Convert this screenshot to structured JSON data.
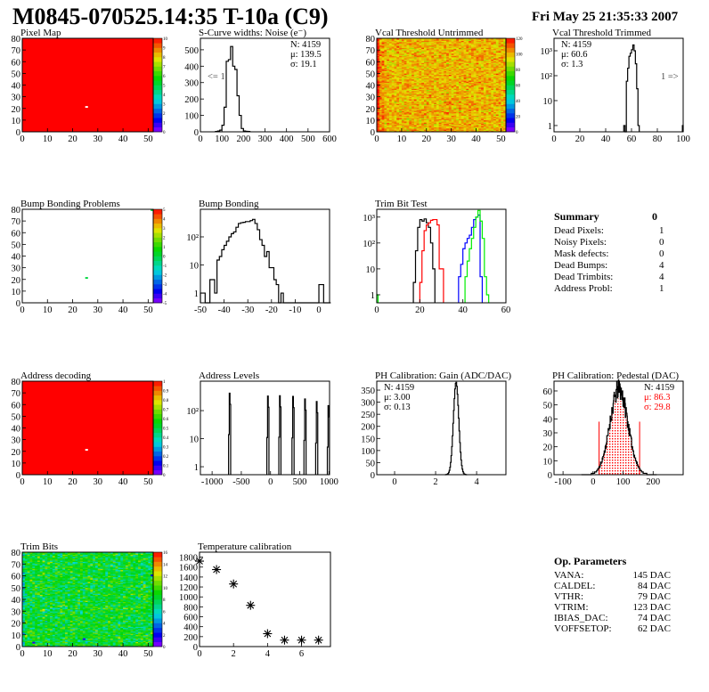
{
  "header": {
    "title": "M0845-070525.14:35 T-10a (C9)",
    "date": "Fri May 25 21:35:33 2007"
  },
  "summary": {
    "title": "Summary",
    "total": "0",
    "rows": [
      {
        "label": "Dead Pixels:",
        "value": "1"
      },
      {
        "label": "Noisy Pixels:",
        "value": "0"
      },
      {
        "label": "Mask defects:",
        "value": "0"
      },
      {
        "label": "Dead Bumps:",
        "value": "4"
      },
      {
        "label": "Dead Trimbits:",
        "value": "4"
      },
      {
        "label": "Address Probl:",
        "value": "1"
      }
    ]
  },
  "op_params": {
    "title": "Op. Parameters",
    "rows": [
      {
        "label": "VANA:",
        "value": "145 DAC"
      },
      {
        "label": "CALDEL:",
        "value": "84 DAC"
      },
      {
        "label": "VTHR:",
        "value": "79 DAC"
      },
      {
        "label": "VTRIM:",
        "value": "123 DAC"
      },
      {
        "label": "IBIAS_DAC:",
        "value": "74 DAC"
      },
      {
        "label": "VOFFSETOP:",
        "value": "62 DAC"
      }
    ]
  },
  "chart_data": [
    {
      "id": "pixel_map",
      "type": "heatmap",
      "title": "Pixel Map",
      "xlim": [
        0,
        52
      ],
      "ylim": [
        0,
        80
      ],
      "xticks": [
        0,
        10,
        20,
        30,
        40,
        50
      ],
      "xtick_labels": [
        "0",
        "10",
        "20",
        "30",
        "40",
        "50"
      ],
      "yticks": [
        0,
        10,
        20,
        30,
        40,
        50,
        60,
        70,
        80
      ],
      "ytick_labels": [
        "0",
        "10",
        "20",
        "30",
        "40",
        "50",
        "60",
        "70",
        "80"
      ],
      "zlim": [
        0,
        10
      ],
      "zticks": [
        "0",
        "1",
        "2",
        "3",
        "4",
        "5",
        "6",
        "7",
        "8",
        "9",
        "10"
      ],
      "fill": {
        "mode": "uniform",
        "value": 10
      },
      "cells": [
        {
          "x": 25,
          "y": 21,
          "v": null
        }
      ]
    },
    {
      "id": "scurve_noise",
      "type": "bar",
      "title": "S-Curve widths: Noise (e⁻)",
      "log": false,
      "xlim": [
        0,
        600
      ],
      "ylim": [
        0,
        570
      ],
      "xticks": [
        0,
        100,
        200,
        300,
        400,
        500,
        600
      ],
      "xtick_labels": [
        "0",
        "100",
        "200",
        "300",
        "400",
        "500",
        "600"
      ],
      "yticks": [
        0,
        100,
        200,
        300,
        400,
        500
      ],
      "ytick_labels": [
        "0",
        "100",
        "200",
        "300",
        "400",
        "500"
      ],
      "series": [
        {
          "name": "noise",
          "color": "#000000",
          "lo": 70,
          "w": 10,
          "values": [
            2,
            5,
            10,
            40,
            150,
            430,
            440,
            520,
            400,
            380,
            220,
            100,
            20,
            5,
            3,
            2
          ]
        }
      ],
      "stats": {
        "pos": "top-right",
        "lines": [
          "N: 4159",
          "μ: 139.5",
          "σ: 19.1"
        ]
      },
      "annotation": {
        "text": "<= 1",
        "pos": "left"
      }
    },
    {
      "id": "vcal_untrimmed",
      "type": "heatmap",
      "title": "Vcal Threshold Untrimmed",
      "xlim": [
        0,
        52
      ],
      "ylim": [
        0,
        80
      ],
      "xticks": [
        0,
        10,
        20,
        30,
        40,
        50
      ],
      "xtick_labels": [
        "0",
        "10",
        "20",
        "30",
        "40",
        "50"
      ],
      "yticks": [
        0,
        10,
        20,
        30,
        40,
        50,
        60,
        70,
        80
      ],
      "ytick_labels": [
        "0",
        "10",
        "20",
        "30",
        "40",
        "50",
        "60",
        "70",
        "80"
      ],
      "zlim": [
        0,
        120
      ],
      "zticks": [
        "0",
        "20",
        "40",
        "60",
        "80",
        "100",
        "120"
      ],
      "fill": {
        "mode": "random",
        "mean": 100,
        "sigma": 6,
        "seed": 7,
        "edge_boost": 12
      },
      "cells": []
    },
    {
      "id": "vcal_trimmed",
      "type": "bar",
      "title": "Vcal Threshold Trimmed",
      "log": true,
      "xlim": [
        0,
        100
      ],
      "ylim": [
        0.56,
        3160
      ],
      "xticks": [
        0,
        20,
        40,
        60,
        80,
        100
      ],
      "xtick_labels": [
        "0",
        "20",
        "40",
        "60",
        "80",
        "100"
      ],
      "yticks": [
        1,
        10,
        100,
        1000
      ],
      "ytick_labels": [
        "1",
        "10",
        "10²",
        "10³"
      ],
      "series": [
        {
          "name": "trimmed",
          "color": "#000000",
          "lo": 54,
          "w": 1,
          "values": [
            1,
            0,
            60,
            200,
            600,
            800,
            1100,
            1700,
            1000,
            300,
            30,
            1
          ]
        },
        {
          "name": "overflow",
          "color": "#000000",
          "lo": 99.4,
          "w": 0.6,
          "values": [
            1
          ]
        }
      ],
      "stats": {
        "pos": "top-left",
        "lines": [
          "N: 4159",
          "μ: 60.6",
          "σ:  1.3"
        ]
      },
      "annotation": {
        "text": "1 =>",
        "pos": "right"
      }
    },
    {
      "id": "bump_map",
      "type": "heatmap",
      "title": "Bump Bonding Problems",
      "xlim": [
        0,
        52
      ],
      "ylim": [
        0,
        80
      ],
      "xticks": [
        0,
        10,
        20,
        30,
        40,
        50
      ],
      "xtick_labels": [
        "0",
        "10",
        "20",
        "30",
        "40",
        "50"
      ],
      "yticks": [
        0,
        10,
        20,
        30,
        40,
        50,
        60,
        70,
        80
      ],
      "ytick_labels": [
        "0",
        "10",
        "20",
        "30",
        "40",
        "50",
        "60",
        "70",
        "80"
      ],
      "zlim": [
        -5,
        5
      ],
      "zticks": [
        "-5",
        "-4",
        "-3",
        "-2",
        "-1",
        "0",
        "1",
        "2",
        "3",
        "4",
        "5"
      ],
      "fill": {
        "mode": "empty"
      },
      "cells": [
        {
          "x": 25,
          "y": 21,
          "v": 0
        },
        {
          "x": 51,
          "y": 79,
          "v": 0
        }
      ]
    },
    {
      "id": "bump_bonding",
      "type": "bar",
      "title": "Bump Bonding",
      "log": true,
      "xlim": [
        -50,
        4.5
      ],
      "ylim": [
        0.45,
        960
      ],
      "xticks": [
        -50,
        -40,
        -30,
        -20,
        -10,
        0
      ],
      "xtick_labels": [
        "-50",
        "-40",
        "-30",
        "-20",
        "-10",
        "0"
      ],
      "yticks": [
        1,
        10,
        100
      ],
      "ytick_labels": [
        "1",
        "10",
        "10²"
      ],
      "series": [
        {
          "name": "bump",
          "color": "#000000",
          "lo": -50,
          "w": 1,
          "values": [
            1,
            1,
            0,
            0,
            3,
            3,
            1,
            15,
            20,
            35,
            50,
            70,
            100,
            130,
            150,
            220,
            300,
            320,
            330,
            350,
            350,
            380,
            420,
            300,
            180,
            80,
            50,
            20,
            30,
            8,
            8,
            3,
            2,
            0,
            1,
            0,
            0,
            0,
            0,
            0,
            0,
            0,
            0,
            0,
            0,
            0,
            0,
            0,
            0,
            0,
            2,
            2,
            0,
            0,
            0
          ]
        }
      ]
    },
    {
      "id": "trim_bit_test",
      "type": "bar",
      "title": "Trim Bit Test",
      "log": true,
      "xlim": [
        0,
        60
      ],
      "ylim": [
        0.49,
        2000
      ],
      "xticks": [
        0,
        20,
        40,
        60
      ],
      "xtick_labels": [
        "0",
        "20",
        "40",
        "60"
      ],
      "yticks": [
        1,
        10,
        100,
        1000
      ],
      "ytick_labels": [
        "1",
        "10",
        "10²",
        "10³"
      ],
      "series": [
        {
          "name": "trim bit 1",
          "color": "#000000",
          "lo": 17,
          "w": 1,
          "values": [
            3,
            50,
            400,
            800,
            700,
            850,
            600,
            400,
            100,
            10
          ]
        },
        {
          "name": "trim bit 2",
          "color": "#ff0000",
          "lo": 20,
          "w": 1,
          "values": [
            3,
            50,
            300,
            500,
            600,
            750,
            800,
            800,
            500,
            10,
            10
          ]
        },
        {
          "name": "trim bit 3",
          "color": "#0000ff",
          "lo": 38,
          "w": 1,
          "values": [
            5,
            15,
            60,
            100,
            150,
            200,
            400,
            800,
            1000,
            1200,
            5
          ]
        },
        {
          "name": "trim bit 4",
          "color": "#00ee00",
          "lo": 41,
          "w": 1,
          "values": [
            5,
            20,
            60,
            150,
            400,
            1000,
            1800,
            700,
            150,
            5,
            1
          ]
        },
        {
          "name": "trim bit 4 underflow",
          "color": "#00ee00",
          "lo": 0,
          "w": 0.6,
          "values": [
            1
          ]
        }
      ]
    },
    {
      "id": "address_map",
      "type": "heatmap",
      "title": "Address decoding",
      "xlim": [
        0,
        52
      ],
      "ylim": [
        0,
        80
      ],
      "xticks": [
        0,
        10,
        20,
        30,
        40,
        50
      ],
      "xtick_labels": [
        "0",
        "10",
        "20",
        "30",
        "40",
        "50"
      ],
      "yticks": [
        0,
        10,
        20,
        30,
        40,
        50,
        60,
        70,
        80
      ],
      "ytick_labels": [
        "0",
        "10",
        "20",
        "30",
        "40",
        "50",
        "60",
        "70",
        "80"
      ],
      "zlim": [
        0,
        1
      ],
      "zticks": [
        "0",
        "0.1",
        "0.2",
        "0.3",
        "0.4",
        "0.5",
        "0.6",
        "0.7",
        "0.8",
        "0.9",
        "1"
      ],
      "fill": {
        "mode": "uniform",
        "value": 1
      },
      "cells": [
        {
          "x": 25,
          "y": 21,
          "v": null
        }
      ]
    },
    {
      "id": "address_levels",
      "type": "bar",
      "title": "Address Levels",
      "log": true,
      "xlim": [
        -1200,
        1010
      ],
      "ylim": [
        0.52,
        1120
      ],
      "xticks": [
        -1000,
        -500,
        0,
        500,
        1000
      ],
      "xtick_labels": [
        "-1000",
        "-500",
        "0",
        "500",
        "1000"
      ],
      "yticks": [
        1,
        10,
        100
      ],
      "ytick_labels": [
        "1",
        "10",
        "10²"
      ],
      "spikes": [
        {
          "x": -700,
          "peak": 420
        },
        {
          "x": -45,
          "peak": 330
        },
        {
          "x": 160,
          "peak": 340
        },
        {
          "x": 385,
          "peak": 320
        },
        {
          "x": 590,
          "peak": 260
        },
        {
          "x": 790,
          "peak": 210
        },
        {
          "x": 990,
          "peak": 150
        }
      ]
    },
    {
      "id": "ph_gain",
      "type": "bar",
      "title": "PH Calibration: Gain (ADC/DAC)",
      "log": false,
      "xlim": [
        -0.87,
        5.43
      ],
      "ylim": [
        0,
        387
      ],
      "xticks": [
        0,
        2,
        4
      ],
      "xtick_labels": [
        "0",
        "2",
        "4"
      ],
      "yticks": [
        0,
        50,
        100,
        150,
        200,
        250,
        300,
        350
      ],
      "ytick_labels": [
        "0",
        "50",
        "100",
        "150",
        "200",
        "250",
        "300",
        "350"
      ],
      "gaussian": {
        "n": 4159,
        "mean": 3.0,
        "sigma": 0.13,
        "w": 0.03,
        "color": "#000000"
      },
      "stats": {
        "pos": "top-left",
        "lines": [
          "N: 4159",
          "μ: 3.00",
          "σ: 0.13"
        ]
      }
    },
    {
      "id": "ph_pedestal",
      "type": "bar",
      "title": "PH Calibration: Pedestal (DAC)",
      "log": false,
      "xlim": [
        -130,
        300
      ],
      "ylim": [
        0,
        67
      ],
      "xticks": [
        -100,
        0,
        100,
        200
      ],
      "xtick_labels": [
        "-100",
        "0",
        "100",
        "200"
      ],
      "yticks": [
        0,
        10,
        20,
        30,
        40,
        50,
        60
      ],
      "ytick_labels": [
        "0",
        "10",
        "20",
        "30",
        "40",
        "50",
        "60"
      ],
      "gaussian": {
        "n": 4159,
        "mean": 86.3,
        "sigma": 29.8,
        "w": 1.1,
        "color": "#000000",
        "noise": 0.12
      },
      "fit_range": [
        20,
        155
      ],
      "fit_color": "#ff0000",
      "stats": {
        "pos": "top-right",
        "lines": [
          "N: 4159",
          "μ: 86.3",
          "σ: 29.8"
        ],
        "colors": [
          "#000000",
          "#ff0000",
          "#ff0000"
        ]
      }
    },
    {
      "id": "trim_bits",
      "type": "heatmap",
      "title": "Trim Bits",
      "xlim": [
        0,
        52
      ],
      "ylim": [
        0,
        80
      ],
      "xticks": [
        0,
        10,
        20,
        30,
        40,
        50
      ],
      "xtick_labels": [
        "0",
        "10",
        "20",
        "30",
        "40",
        "50"
      ],
      "yticks": [
        0,
        10,
        20,
        30,
        40,
        50,
        60,
        70,
        80
      ],
      "ytick_labels": [
        "0",
        "10",
        "20",
        "30",
        "40",
        "50",
        "60",
        "70",
        "80"
      ],
      "zlim": [
        0,
        16
      ],
      "zticks": [
        "0",
        "2",
        "4",
        "6",
        "8",
        "10",
        "12",
        "14",
        "16"
      ],
      "fill": {
        "mode": "random",
        "mean": 8.5,
        "sigma": 1.4,
        "seed": 3,
        "edge_boost": -2
      },
      "cells": [
        {
          "x": 4,
          "y": 3,
          "v": 1.5
        },
        {
          "x": 24,
          "y": 6,
          "v": 1.5
        },
        {
          "x": 51,
          "y": 60,
          "v": 2
        }
      ]
    },
    {
      "id": "temperature_calibration",
      "type": "scatter",
      "title": "Temperature calibration",
      "xlim": [
        0,
        7.7
      ],
      "ylim": [
        0,
        1900
      ],
      "xticks": [
        0,
        2,
        4,
        6
      ],
      "xtick_labels": [
        "0",
        "2",
        "4",
        "6"
      ],
      "yticks": [
        0,
        200,
        400,
        600,
        800,
        1000,
        1200,
        1400,
        1600,
        1800
      ],
      "ytick_labels": [
        "0",
        "200",
        "400",
        "600",
        "800",
        "1000",
        "1200",
        "1400",
        "1600",
        "1800"
      ],
      "x": [
        0,
        1,
        2,
        3,
        4,
        5,
        6,
        7
      ],
      "y": [
        1720,
        1550,
        1260,
        830,
        260,
        130,
        130,
        130
      ]
    }
  ]
}
